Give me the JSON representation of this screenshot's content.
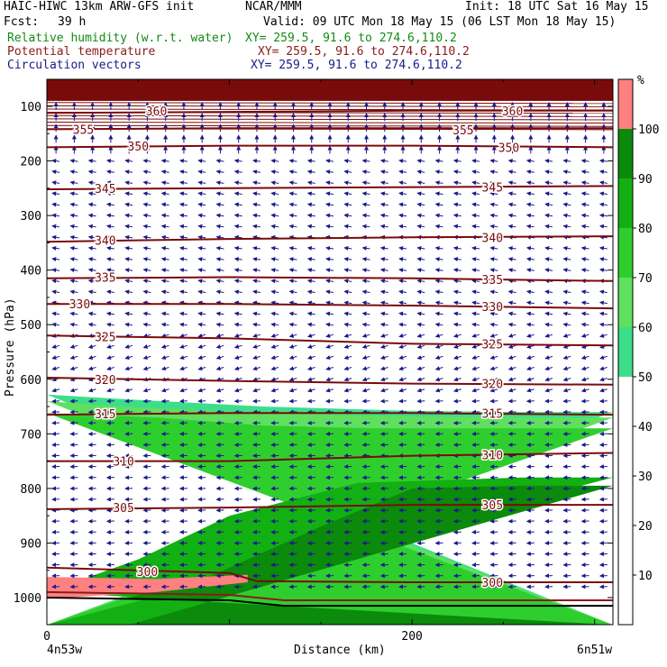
{
  "header": {
    "title_left": "HAIC-HIWC 13km ARW-GFS init",
    "source": "NCAR/MMM",
    "init": "Init: 18 UTC Sat 16 May 15",
    "fcst_label": "Fcst:",
    "fcst_value": "39 h",
    "valid": "Valid: 09 UTC Mon 18 May 15 (06 LST Mon 18 May 15)"
  },
  "fields": [
    {
      "name": "Relative humidity (w.r.t. water)",
      "xy": "XY= 259.5, 91.6 to 274.6,110.2",
      "color": "#138a13"
    },
    {
      "name": "Potential temperature",
      "xy": "XY= 259.5, 91.6 to 274.6,110.2",
      "color": "#8b1a1a"
    },
    {
      "name": "Circulation vectors",
      "xy": "XY= 259.5, 91.6 to 274.6,110.2",
      "color": "#1a1a8a"
    }
  ],
  "chart_data": {
    "type": "heatmap",
    "xlabel": "Distance (km)",
    "ylabel": "Pressure (hPa)",
    "xlim": [
      0,
      310
    ],
    "ylim": [
      1050,
      30
    ],
    "x_ticks": [
      0,
      200
    ],
    "y_ticks": [
      100,
      200,
      300,
      400,
      500,
      600,
      700,
      800,
      900,
      1000
    ],
    "x_start_label": "4n53w",
    "x_end_label": "6n51w",
    "colorbar": {
      "unit": "%",
      "levels": [
        10,
        20,
        30,
        40,
        50,
        60,
        70,
        80,
        90,
        100
      ],
      "bands": [
        {
          "from": 0,
          "to": 50,
          "color": "#ffffff"
        },
        {
          "from": 50,
          "to": 60,
          "color": "#3dde8a"
        },
        {
          "from": 60,
          "to": 70,
          "color": "#5fe05f"
        },
        {
          "from": 70,
          "to": 80,
          "color": "#2fce2f"
        },
        {
          "from": 80,
          "to": 90,
          "color": "#13b013"
        },
        {
          "from": 90,
          "to": 100,
          "color": "#0b8a0b"
        },
        {
          "from": 100,
          "to": 110,
          "color": "#ff8080"
        }
      ]
    },
    "rh_regions": [
      {
        "level": 50,
        "color": "#3dde8a",
        "upper": [
          [
            0,
            628
          ],
          [
            40,
            636
          ],
          [
            120,
            650
          ],
          [
            200,
            658
          ],
          [
            260,
            660
          ],
          [
            310,
            660
          ]
        ],
        "lower": [
          [
            0,
            1050
          ],
          [
            310,
            1050
          ]
        ]
      },
      {
        "level": 60,
        "color": "#5fe05f",
        "upper": [
          [
            0,
            640
          ],
          [
            40,
            650
          ],
          [
            120,
            662
          ],
          [
            200,
            668
          ],
          [
            260,
            670
          ],
          [
            310,
            670
          ]
        ],
        "lower": [
          [
            0,
            1050
          ],
          [
            310,
            1050
          ]
        ]
      },
      {
        "level": 70,
        "color": "#2fce2f",
        "upper": [
          [
            0,
            662
          ],
          [
            60,
            670
          ],
          [
            120,
            685
          ],
          [
            180,
            690
          ],
          [
            310,
            690
          ]
        ],
        "lower": [
          [
            0,
            1050
          ],
          [
            310,
            1050
          ]
        ]
      },
      {
        "level": 80,
        "color": "#13b013",
        "upper": [
          [
            0,
            990
          ],
          [
            50,
            930
          ],
          [
            100,
            850
          ],
          [
            170,
            790
          ],
          [
            260,
            780
          ],
          [
            310,
            780
          ]
        ],
        "lower": [
          [
            0,
            1050
          ],
          [
            310,
            1050
          ]
        ]
      },
      {
        "level": 90,
        "color": "#0b8a0b",
        "upper": [
          [
            45,
            1000
          ],
          [
            90,
            960
          ],
          [
            150,
            870
          ],
          [
            200,
            800
          ],
          [
            260,
            795
          ],
          [
            310,
            795
          ]
        ],
        "lower": [
          [
            45,
            1050
          ],
          [
            310,
            1050
          ]
        ]
      },
      {
        "level": 100,
        "color": "#ff8080",
        "upper": [
          [
            0,
            962
          ],
          [
            60,
            966
          ],
          [
            110,
            958
          ]
        ],
        "lower": [
          [
            110,
            972
          ],
          [
            60,
            990
          ],
          [
            0,
            1002
          ]
        ]
      }
    ],
    "theta_isolines": [
      {
        "value": 360,
        "pts": [
          [
            0,
            112
          ],
          [
            100,
            110
          ],
          [
            200,
            108
          ],
          [
            310,
            108
          ]
        ],
        "labels": [
          [
            60,
            108
          ],
          [
            255,
            108
          ]
        ]
      },
      {
        "value": 355,
        "pts": [
          [
            0,
            142
          ],
          [
            100,
            140
          ],
          [
            200,
            140
          ],
          [
            310,
            140
          ]
        ],
        "labels": [
          [
            20,
            142
          ],
          [
            228,
            143
          ]
        ]
      },
      {
        "value": 350,
        "pts": [
          [
            0,
            175
          ],
          [
            100,
            172
          ],
          [
            200,
            172
          ],
          [
            310,
            175
          ]
        ],
        "labels": [
          [
            50,
            173
          ],
          [
            253,
            175
          ]
        ]
      },
      {
        "value": 345,
        "pts": [
          [
            0,
            252
          ],
          [
            100,
            250
          ],
          [
            200,
            248
          ],
          [
            310,
            246
          ]
        ],
        "labels": [
          [
            32,
            250
          ],
          [
            244,
            248
          ]
        ]
      },
      {
        "value": 340,
        "pts": [
          [
            0,
            348
          ],
          [
            100,
            343
          ],
          [
            200,
            340
          ],
          [
            310,
            338
          ]
        ],
        "labels": [
          [
            32,
            345
          ],
          [
            244,
            340
          ]
        ]
      },
      {
        "value": 335,
        "pts": [
          [
            0,
            415
          ],
          [
            100,
            413
          ],
          [
            200,
            415
          ],
          [
            310,
            420
          ]
        ],
        "labels": [
          [
            32,
            413
          ],
          [
            244,
            417
          ]
        ]
      },
      {
        "value": 330,
        "pts": [
          [
            0,
            462
          ],
          [
            100,
            462
          ],
          [
            200,
            465
          ],
          [
            310,
            470
          ]
        ],
        "labels": [
          [
            18,
            462
          ],
          [
            244,
            467
          ]
        ]
      },
      {
        "value": 325,
        "pts": [
          [
            0,
            520
          ],
          [
            100,
            525
          ],
          [
            200,
            535
          ],
          [
            310,
            538
          ]
        ],
        "labels": [
          [
            32,
            522
          ],
          [
            244,
            535
          ]
        ]
      },
      {
        "value": 320,
        "pts": [
          [
            0,
            597
          ],
          [
            100,
            603
          ],
          [
            200,
            608
          ],
          [
            310,
            610
          ]
        ],
        "labels": [
          [
            32,
            600
          ],
          [
            244,
            608
          ]
        ]
      },
      {
        "value": 315,
        "pts": [
          [
            0,
            665
          ],
          [
            100,
            662
          ],
          [
            200,
            662
          ],
          [
            310,
            665
          ]
        ],
        "labels": [
          [
            32,
            663
          ],
          [
            244,
            662
          ]
        ]
      },
      {
        "value": 310,
        "pts": [
          [
            0,
            750
          ],
          [
            100,
            750
          ],
          [
            200,
            740
          ],
          [
            310,
            735
          ]
        ],
        "labels": [
          [
            42,
            750
          ],
          [
            244,
            738
          ]
        ]
      },
      {
        "value": 305,
        "pts": [
          [
            0,
            838
          ],
          [
            100,
            835
          ],
          [
            200,
            830
          ],
          [
            310,
            830
          ]
        ],
        "labels": [
          [
            42,
            835
          ],
          [
            244,
            830
          ]
        ]
      },
      {
        "value": 300,
        "pts": [
          [
            0,
            945
          ],
          [
            100,
            955
          ],
          [
            115,
            970
          ],
          [
            200,
            972
          ],
          [
            310,
            972
          ]
        ],
        "labels": [
          [
            55,
            952
          ],
          [
            244,
            972
          ]
        ]
      }
    ],
    "theta_stratosphere_fill": {
      "from": 30,
      "to": 90
    },
    "surface_lines": [
      {
        "color": "#000000",
        "pts": [
          [
            0,
            1000
          ],
          [
            100,
            1005
          ],
          [
            130,
            1015
          ],
          [
            310,
            1015
          ]
        ]
      },
      {
        "color": "#8b1a1a",
        "pts": [
          [
            0,
            990
          ],
          [
            100,
            995
          ],
          [
            130,
            1005
          ],
          [
            310,
            1005
          ]
        ]
      }
    ],
    "vectors": [
      {
        "p_range": [
          100,
          200
        ],
        "u": 0.0,
        "w": -1.0
      },
      {
        "p_range": [
          200,
          520
        ],
        "u": -1.0,
        "w": -0.15
      },
      {
        "p_range": [
          520,
          640
        ],
        "u": -1.0,
        "w": 0.3
      },
      {
        "p_range": [
          640,
          1000
        ],
        "u": -1.0,
        "w": 0.05
      }
    ]
  }
}
